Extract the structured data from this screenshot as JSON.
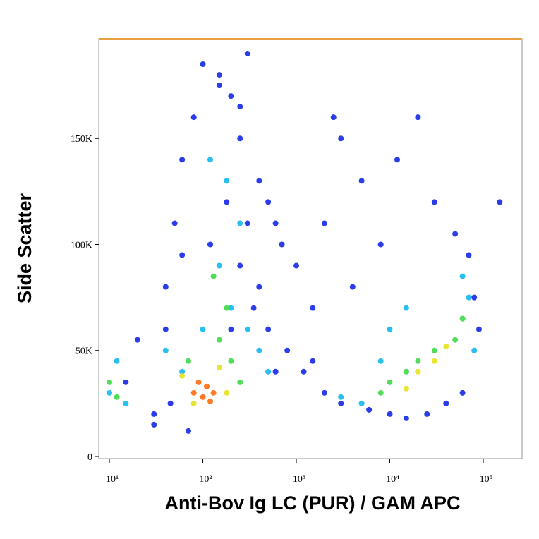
{
  "chart_data": {
    "type": "scatter",
    "x_label": "Anti-Bov Ig LC (PUR) / GAM APC",
    "y_label": "Side Scatter",
    "xscale": "log",
    "xlim": [
      7.7,
      260000
    ],
    "ylim": [
      -1000,
      197000
    ],
    "xticks": [
      {
        "value": 10,
        "label": "10¹"
      },
      {
        "value": 100,
        "label": "10²"
      },
      {
        "value": 1000,
        "label": "10³"
      },
      {
        "value": 10000,
        "label": "10⁴"
      },
      {
        "value": 100000,
        "label": "10⁵"
      }
    ],
    "yticks": [
      0,
      {
        "value": 50000,
        "label": "50K"
      },
      {
        "value": 100000,
        "label": "100K"
      },
      {
        "value": 150000,
        "label": "150K"
      }
    ],
    "series": [
      {
        "color": "#1428e6",
        "x": [
          15,
          20,
          30,
          40,
          50,
          60,
          80,
          150,
          200,
          250,
          300,
          400,
          500,
          700,
          1000,
          1500,
          2000,
          3000,
          5000,
          8000,
          12000,
          20000,
          30000,
          50000,
          70000,
          90000,
          150000,
          30,
          45,
          70,
          120,
          180,
          250,
          350,
          500,
          800,
          1200,
          2000,
          3000,
          4000,
          6000,
          10000,
          15000,
          25000,
          40000,
          60000,
          80000,
          200,
          300,
          400,
          600,
          100,
          150,
          250,
          40,
          60,
          1500,
          2500,
          600
        ],
        "values": [
          35000,
          55000,
          20000,
          80000,
          110000,
          140000,
          160000,
          180000,
          170000,
          150000,
          190000,
          130000,
          120000,
          100000,
          90000,
          70000,
          110000,
          150000,
          130000,
          100000,
          140000,
          160000,
          120000,
          105000,
          95000,
          60000,
          120000,
          15000,
          25000,
          12000,
          100000,
          120000,
          90000,
          70000,
          60000,
          50000,
          40000,
          30000,
          25000,
          80000,
          22000,
          20000,
          18000,
          20000,
          25000,
          30000,
          75000,
          60000,
          110000,
          80000,
          40000,
          185000,
          175000,
          165000,
          60000,
          95000,
          45000,
          160000,
          110000
        ]
      },
      {
        "color": "#12b8f0",
        "x": [
          10,
          12,
          15,
          40,
          60,
          150,
          200,
          300,
          250,
          180,
          400,
          500,
          3000,
          5000,
          8000,
          10000,
          15000,
          60000,
          70000,
          80000,
          100,
          120
        ],
        "values": [
          30000,
          45000,
          25000,
          50000,
          40000,
          90000,
          70000,
          60000,
          110000,
          130000,
          50000,
          40000,
          28000,
          25000,
          45000,
          60000,
          70000,
          85000,
          75000,
          50000,
          60000,
          140000
        ]
      },
      {
        "color": "#3ed848",
        "x": [
          10,
          12,
          70,
          150,
          200,
          250,
          180,
          130,
          10000,
          15000,
          20000,
          30000,
          8000,
          50000,
          60000
        ],
        "values": [
          35000,
          28000,
          45000,
          55000,
          45000,
          35000,
          70000,
          85000,
          35000,
          40000,
          45000,
          50000,
          30000,
          55000,
          65000
        ]
      },
      {
        "color": "#e6e21e",
        "x": [
          60,
          80,
          150,
          180,
          20000,
          30000,
          40000,
          15000
        ],
        "values": [
          38000,
          25000,
          42000,
          30000,
          40000,
          45000,
          52000,
          32000
        ]
      },
      {
        "color": "#ff6a10",
        "x": [
          80,
          100,
          110,
          130,
          90,
          120
        ],
        "values": [
          30000,
          28000,
          33000,
          30000,
          35000,
          26000
        ]
      }
    ]
  }
}
